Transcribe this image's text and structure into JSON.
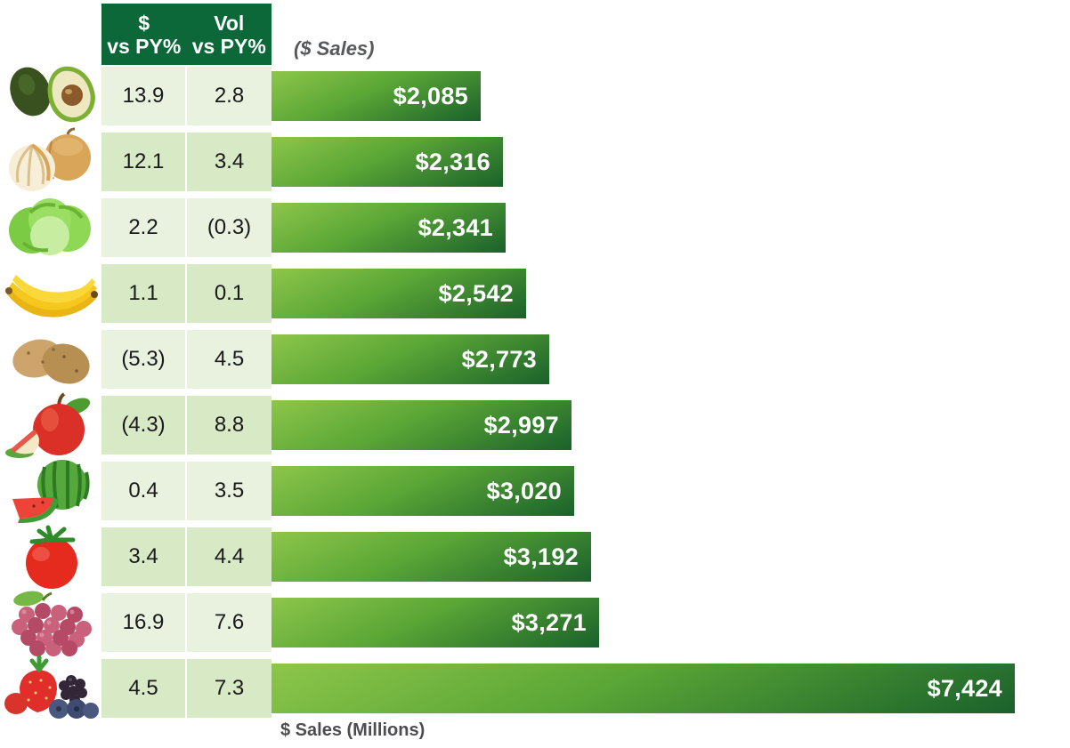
{
  "colors": {
    "header_green": "#0C6838",
    "row_light": "#E9F1DF",
    "row_dark": "#D8E9C6",
    "bar_gradient_top": "#8DC64A",
    "bar_gradient_bottom": "#1A612B",
    "bar_text": "#FFFFFF",
    "caption_gray": "#58595B"
  },
  "chart_data": {
    "type": "bar",
    "orientation": "horizontal",
    "bar_caption": "($ Sales)",
    "xlabel": "$ Sales (Millions)",
    "value_axis_max": 7424,
    "grid": false,
    "legend": false,
    "columns": [
      {
        "label": "$ vs PY%",
        "line1": "$",
        "line2": "vs PY%"
      },
      {
        "label": "Vol vs PY%",
        "line1": "Vol",
        "line2": "vs PY%"
      }
    ],
    "rows": [
      {
        "item": "avocado",
        "icon": "avocado-icon",
        "dollar_vs_py": "13.9",
        "vol_vs_py": "2.8",
        "sales_millions": 2085,
        "sales_label": "$2,085"
      },
      {
        "item": "onion",
        "icon": "onion-icon",
        "dollar_vs_py": "12.1",
        "vol_vs_py": "3.4",
        "sales_millions": 2316,
        "sales_label": "$2,316"
      },
      {
        "item": "lettuce",
        "icon": "lettuce-icon",
        "dollar_vs_py": "2.2",
        "vol_vs_py": "(0.3)",
        "sales_millions": 2341,
        "sales_label": "$2,341"
      },
      {
        "item": "bananas",
        "icon": "banana-icon",
        "dollar_vs_py": "1.1",
        "vol_vs_py": "0.1",
        "sales_millions": 2542,
        "sales_label": "$2,542"
      },
      {
        "item": "potatoes",
        "icon": "potato-icon",
        "dollar_vs_py": "(5.3)",
        "vol_vs_py": "4.5",
        "sales_millions": 2773,
        "sales_label": "$2,773"
      },
      {
        "item": "apples",
        "icon": "apple-icon",
        "dollar_vs_py": "(4.3)",
        "vol_vs_py": "8.8",
        "sales_millions": 2997,
        "sales_label": "$2,997"
      },
      {
        "item": "watermelon",
        "icon": "watermelon-icon",
        "dollar_vs_py": "0.4",
        "vol_vs_py": "3.5",
        "sales_millions": 3020,
        "sales_label": "$3,020"
      },
      {
        "item": "tomatoes",
        "icon": "tomato-icon",
        "dollar_vs_py": "3.4",
        "vol_vs_py": "4.4",
        "sales_millions": 3192,
        "sales_label": "$3,192"
      },
      {
        "item": "grapes",
        "icon": "grapes-icon",
        "dollar_vs_py": "16.9",
        "vol_vs_py": "7.6",
        "sales_millions": 3271,
        "sales_label": "$3,271"
      },
      {
        "item": "berries",
        "icon": "berries-icon",
        "dollar_vs_py": "4.5",
        "vol_vs_py": "7.3",
        "sales_millions": 7424,
        "sales_label": "$7,424"
      }
    ]
  }
}
